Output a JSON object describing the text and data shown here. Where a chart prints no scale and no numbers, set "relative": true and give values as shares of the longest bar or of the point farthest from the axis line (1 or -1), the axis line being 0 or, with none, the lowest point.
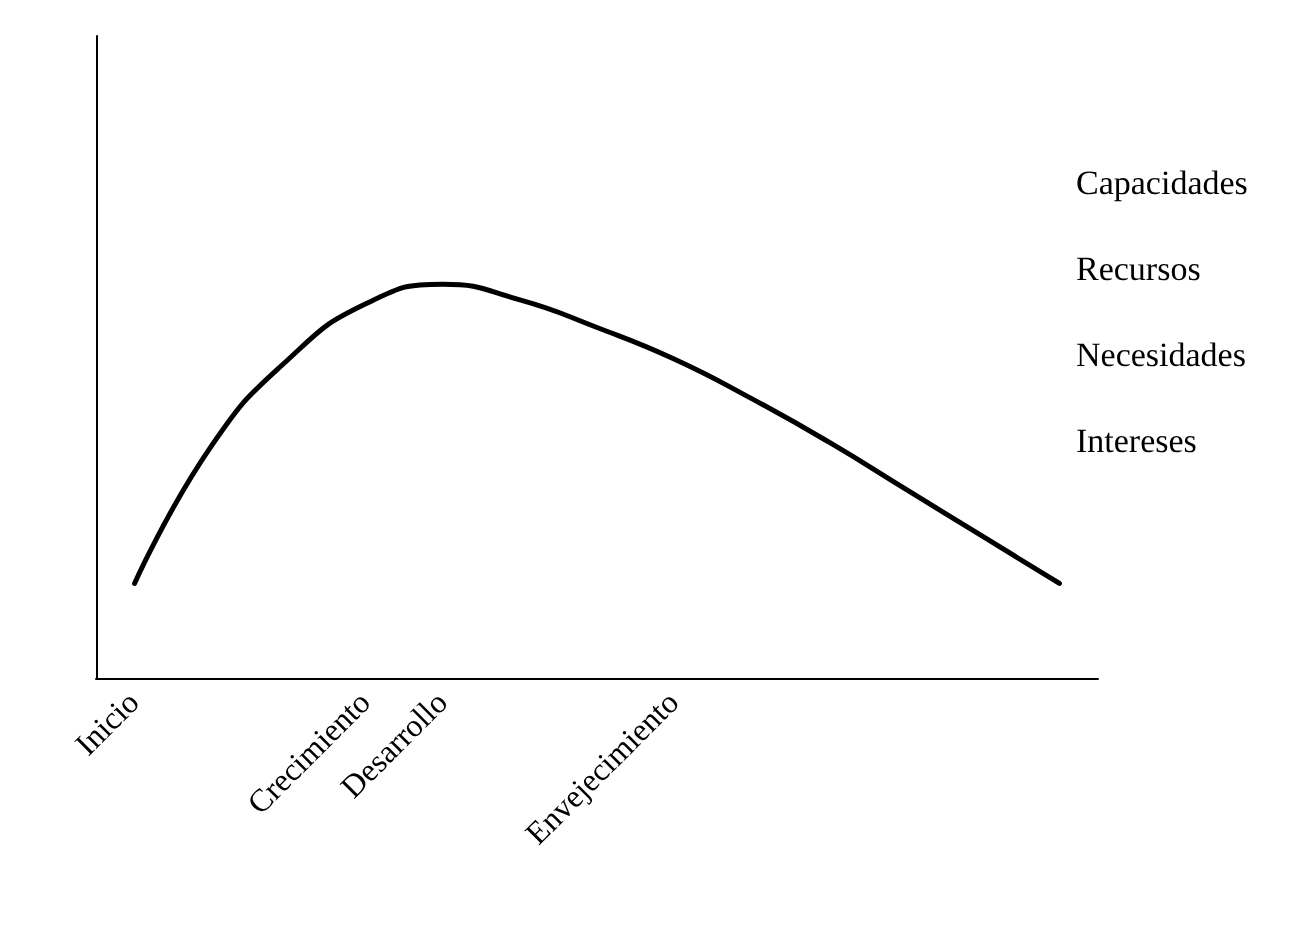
{
  "chart_data": {
    "type": "line",
    "relative": true,
    "categories": [
      "Inicio",
      null,
      null,
      "Crecimiento",
      "Desarrollo",
      null,
      null,
      "Envejecimiento",
      null,
      null,
      null,
      null,
      null
    ],
    "series": [
      {
        "color": "#000000",
        "values": [
          0.24,
          0.59,
          0.81,
          0.95,
          1,
          0.96,
          0.89,
          0.81,
          0.71,
          0.6,
          0.48,
          0.36,
          0.24
        ]
      }
    ],
    "annotations": [
      "Capacidades",
      "Recursos",
      "Necesidades",
      "Intereses"
    ],
    "grid": false,
    "marker": "none",
    "line_style": "solid"
  }
}
